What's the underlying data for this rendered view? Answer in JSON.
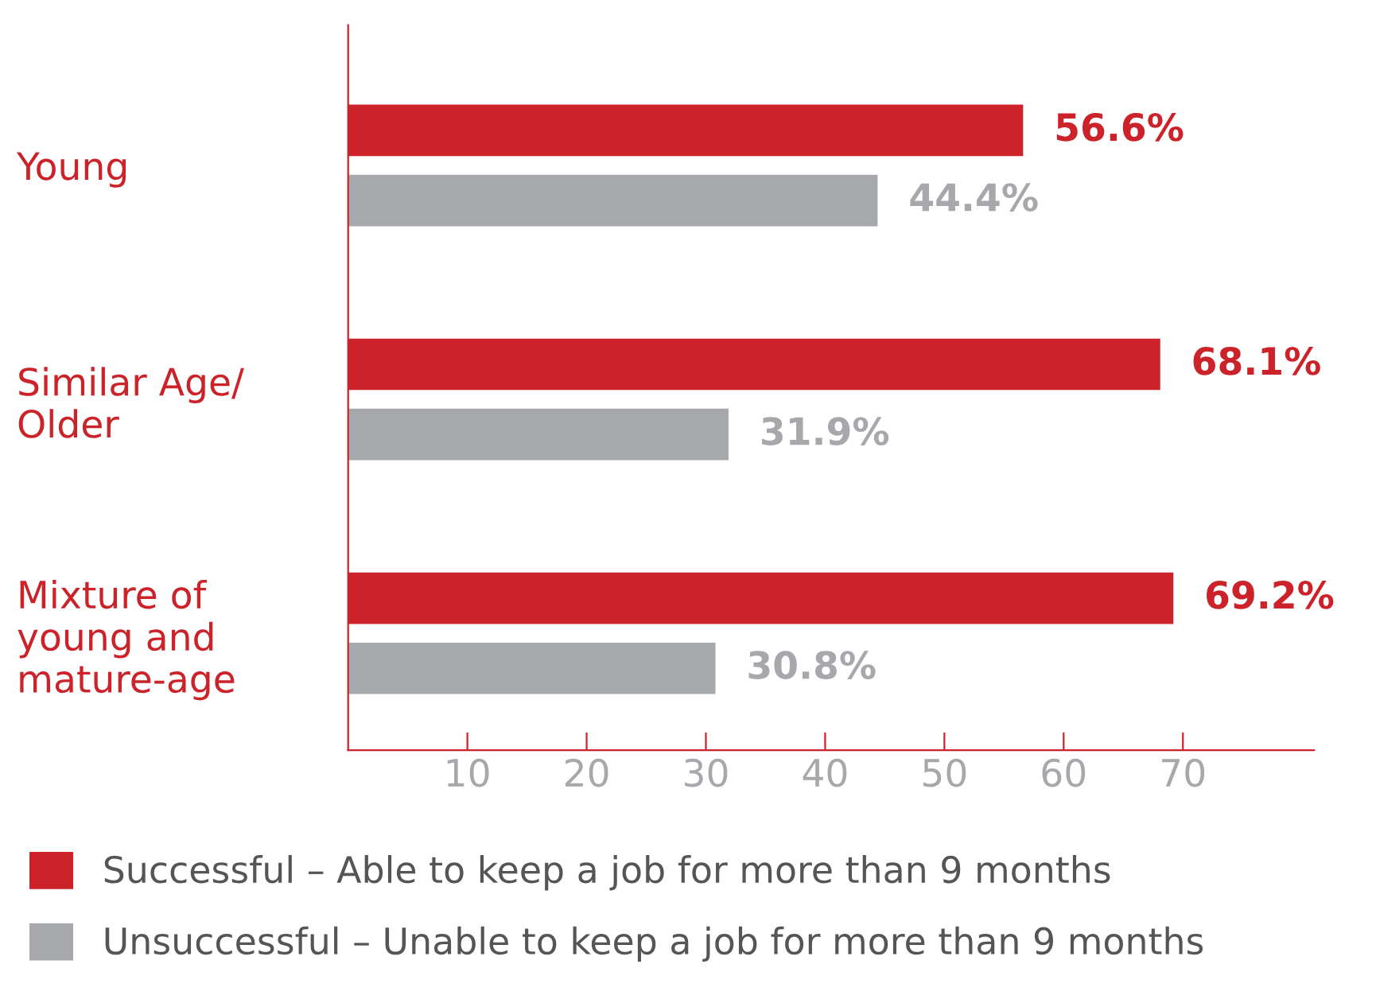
{
  "chart_data": {
    "type": "bar",
    "orientation": "horizontal",
    "categories": [
      "Young",
      "Similar Age/\nOlder",
      "Mixture of\nyoung and\nmature-age"
    ],
    "series": [
      {
        "name": "Successful – Able to keep a job for more than 9 months",
        "color": "#cc2229",
        "values": [
          56.6,
          68.1,
          69.2
        ],
        "value_labels": [
          "56.6%",
          "68.1%",
          "69.2%"
        ]
      },
      {
        "name": "Unsuccessful – Unable to keep a job for more than 9 months",
        "color": "#a7a8ab",
        "values": [
          44.4,
          31.9,
          30.8
        ],
        "value_labels": [
          "44.4%",
          "31.9%",
          "30.8%"
        ]
      }
    ],
    "xlim": [
      0,
      81
    ],
    "xticks": [
      10,
      20,
      30,
      40,
      50,
      60,
      70
    ],
    "grid": false,
    "legend": "bottom"
  }
}
